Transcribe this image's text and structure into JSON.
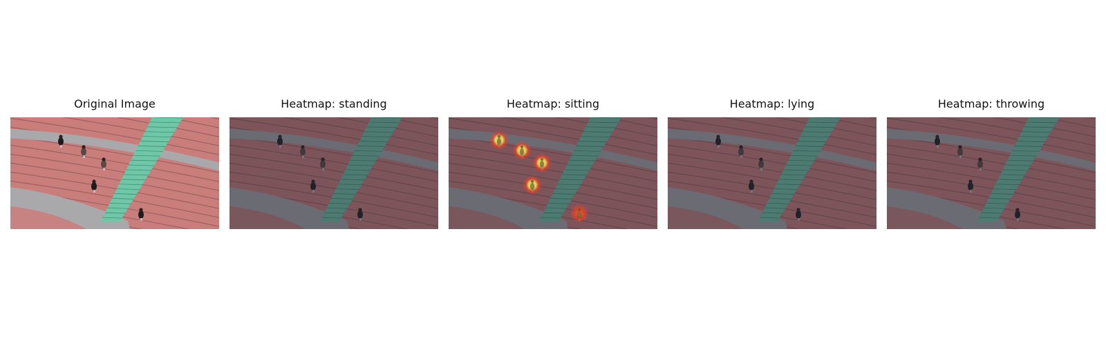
{
  "panels": [
    {
      "title": "Original Image",
      "kind": "original",
      "heat": []
    },
    {
      "title": "Heatmap: standing",
      "kind": "overlay",
      "heat": []
    },
    {
      "title": "Heatmap: sitting",
      "kind": "overlay",
      "heat": [
        {
          "person": 1,
          "strength": 1.0
        },
        {
          "person": 2,
          "strength": 1.0
        },
        {
          "person": 3,
          "strength": 1.0
        },
        {
          "person": 4,
          "strength": 1.0
        },
        {
          "person": 5,
          "strength": 0.7
        }
      ]
    },
    {
      "title": "Heatmap: lying",
      "kind": "overlay",
      "heat": []
    },
    {
      "title": "Heatmap: throwing",
      "kind": "overlay",
      "heat": []
    }
  ],
  "colors": {
    "seat_red": "#c97e7c",
    "aisle_grey": "#a9a9ab",
    "stairs_teal": "#6fc7a8",
    "overlay_tint": "rgba(40,40,55,0.48)",
    "heat_hot": "#fff35a",
    "heat_mid": "#ff3b1f"
  }
}
